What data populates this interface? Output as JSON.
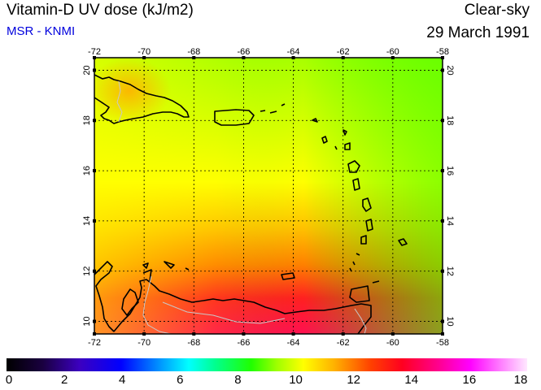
{
  "header": {
    "title": "Vitamin-D UV dose (kJ/m2)",
    "source": "MSR - KNMI",
    "sky": "Clear-sky",
    "date": "29 March 1991"
  },
  "map": {
    "lon_ticks": [
      "-72",
      "-70",
      "-68",
      "-66",
      "-64",
      "-62",
      "-60",
      "-58"
    ],
    "lat_ticks": [
      "20",
      "18",
      "16",
      "14",
      "12",
      "10"
    ],
    "lon_range": [
      -72,
      -58
    ],
    "lat_range": [
      9.5,
      20.5
    ],
    "grid": true
  },
  "colorbar": {
    "ticks": [
      "0",
      "2",
      "4",
      "6",
      "8",
      "10",
      "12",
      "14",
      "16",
      "18"
    ],
    "range": [
      0,
      18
    ]
  },
  "colors": {
    "subtitle": "#0000dd",
    "coast": "#000000",
    "border": "#c8c8c8"
  }
}
